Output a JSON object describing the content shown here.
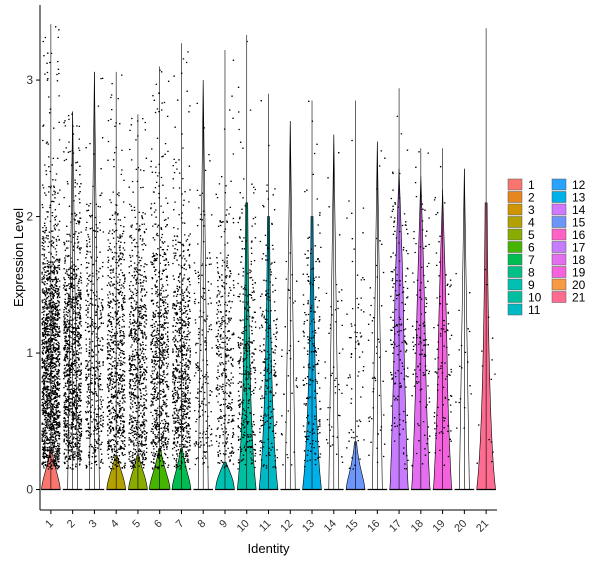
{
  "chart_data": {
    "type": "violin",
    "xlabel": "Identity",
    "ylabel": "Expression Level",
    "ylim": [
      -0.15,
      3.55
    ],
    "yticks": [
      "0",
      "1",
      "2",
      "3"
    ],
    "ytick_values": [
      0,
      1,
      2,
      3
    ],
    "jitter_points": true,
    "grid": false,
    "legend_position": "right",
    "categories": [
      "1",
      "2",
      "3",
      "4",
      "5",
      "6",
      "7",
      "8",
      "9",
      "10",
      "11",
      "12",
      "13",
      "14",
      "15",
      "16",
      "17",
      "18",
      "19",
      "20",
      "21"
    ],
    "colors": [
      "#F8766D",
      "#E7851E",
      "#D09400",
      "#B2A100",
      "#89AC00",
      "#45B500",
      "#00BC51",
      "#00C087",
      "#00C0B2",
      "#00BCD6",
      "#00B3F2",
      "#29A3FF",
      "#9C8DFF",
      "#D277FF",
      "#F166E8",
      "#FF61C7",
      "#FF6A9F",
      "#FF7777",
      "#FF8C5A",
      "#F89A44",
      "#F8766D"
    ],
    "violin_color_override": {
      "10": "#00BFA0",
      "11": "#00B9C4",
      "13": "#00B0E8",
      "15": "#6C96F9",
      "17": "#C77CFF",
      "18": "#E36EF0",
      "19": "#F562DD",
      "21": "#FF6C91"
    },
    "series": [
      {
        "name": "1",
        "max": 3.41,
        "points": 6500,
        "violin": {
          "base_width": 0.45,
          "peak": 0.2,
          "top": 0.3
        }
      },
      {
        "name": "2",
        "max": 2.77,
        "points": 4200,
        "violin": {
          "base_width": 0.0,
          "peak": 0.0,
          "top": 2.77
        }
      },
      {
        "name": "3",
        "max": 3.06,
        "points": 1800,
        "violin": {
          "base_width": 0.0,
          "peak": 0.0,
          "top": 3.06
        }
      },
      {
        "name": "4",
        "max": 3.06,
        "points": 3000,
        "violin": {
          "base_width": 0.45,
          "peak": 0.15,
          "top": 0.25
        }
      },
      {
        "name": "5",
        "max": 2.75,
        "points": 3000,
        "violin": {
          "base_width": 0.45,
          "peak": 0.15,
          "top": 0.25
        }
      },
      {
        "name": "6",
        "max": 3.1,
        "points": 3000,
        "violin": {
          "base_width": 0.5,
          "peak": 0.18,
          "top": 0.3
        }
      },
      {
        "name": "7",
        "max": 3.27,
        "points": 3000,
        "violin": {
          "base_width": 0.45,
          "peak": 0.18,
          "top": 0.3
        }
      },
      {
        "name": "8",
        "max": 3.0,
        "points": 800,
        "violin": {
          "base_width": 0.0,
          "peak": 0.0,
          "top": 3.0
        }
      },
      {
        "name": "9",
        "max": 3.22,
        "points": 1500,
        "violin": {
          "base_width": 0.45,
          "peak": 0.1,
          "top": 0.2
        }
      },
      {
        "name": "10",
        "max": 3.33,
        "points": 1400,
        "violin": {
          "base_width": 0.45,
          "peak": 0.2,
          "top": 2.1
        }
      },
      {
        "name": "11",
        "max": 2.9,
        "points": 900,
        "violin": {
          "base_width": 0.45,
          "peak": 0.2,
          "top": 2.0
        }
      },
      {
        "name": "12",
        "max": 2.7,
        "points": 150,
        "violin": {
          "base_width": 0.0,
          "peak": 0.0,
          "top": 2.7
        }
      },
      {
        "name": "13",
        "max": 2.85,
        "points": 800,
        "violin": {
          "base_width": 0.45,
          "peak": 0.2,
          "top": 2.0
        }
      },
      {
        "name": "14",
        "max": 2.6,
        "points": 200,
        "violin": {
          "base_width": 0.0,
          "peak": 0.0,
          "top": 2.6
        }
      },
      {
        "name": "15",
        "max": 2.85,
        "points": 300,
        "violin": {
          "base_width": 0.45,
          "peak": 0.2,
          "top": 0.35
        }
      },
      {
        "name": "16",
        "max": 2.55,
        "points": 200,
        "violin": {
          "base_width": 0.0,
          "peak": 0.0,
          "top": 2.55
        }
      },
      {
        "name": "17",
        "max": 2.94,
        "points": 700,
        "violin": {
          "base_width": 0.45,
          "peak": 1.2,
          "top": 2.35
        }
      },
      {
        "name": "18",
        "max": 2.5,
        "points": 500,
        "violin": {
          "base_width": 0.45,
          "peak": 1.0,
          "top": 2.3
        }
      },
      {
        "name": "19",
        "max": 2.5,
        "points": 400,
        "violin": {
          "base_width": 0.45,
          "peak": 0.9,
          "top": 2.2
        }
      },
      {
        "name": "20",
        "max": 2.35,
        "points": 80,
        "violin": {
          "base_width": 0.0,
          "peak": 0.0,
          "top": 2.35
        }
      },
      {
        "name": "21",
        "max": 3.38,
        "points": 60,
        "violin": {
          "base_width": 0.45,
          "peak": 0.05,
          "top": 2.1
        }
      }
    ]
  }
}
